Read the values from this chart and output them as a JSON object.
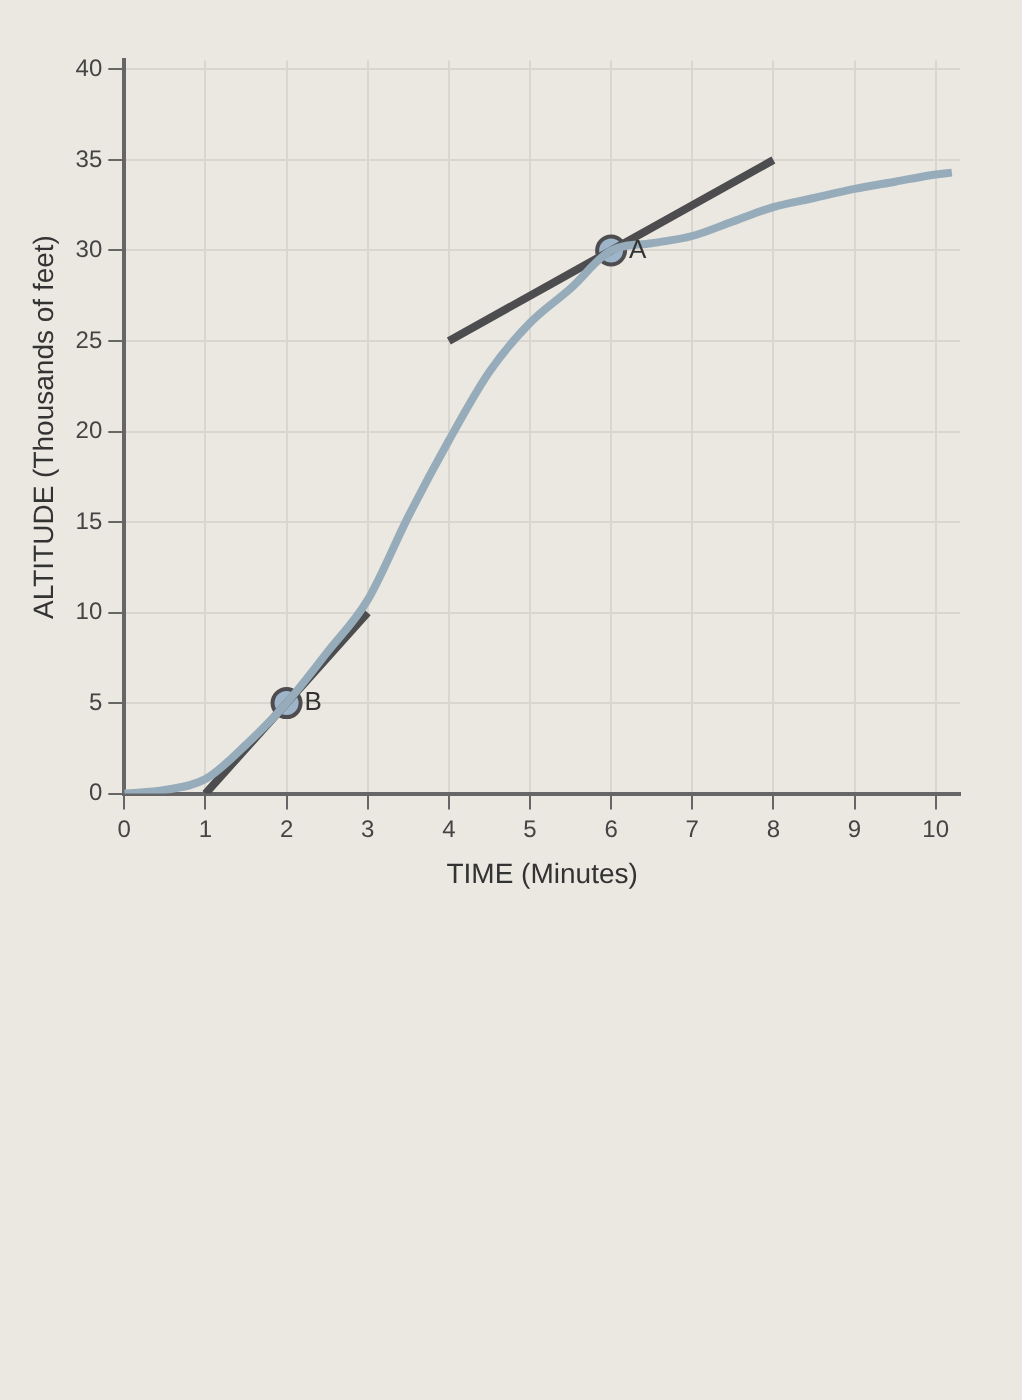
{
  "chart_data": {
    "type": "line",
    "xlabel": "TIME (Minutes)",
    "ylabel": "ALTITUDE (Thousands of feet)",
    "xlim": [
      0,
      10.3
    ],
    "ylim": [
      0,
      40.5
    ],
    "xticks": [
      0,
      1,
      2,
      3,
      4,
      5,
      6,
      7,
      8,
      9,
      10
    ],
    "yticks": [
      0,
      5,
      10,
      15,
      20,
      25,
      30,
      35,
      40
    ],
    "grid": true,
    "line_style": "solid",
    "series": [
      {
        "color": "#97acbb",
        "x": [
          0,
          0.5,
          1,
          1.5,
          2,
          2.5,
          3,
          3.5,
          4,
          4.5,
          5,
          5.5,
          6,
          6.5,
          7,
          7.5,
          8,
          8.5,
          9,
          9.5,
          10,
          10.2
        ],
        "values": [
          0,
          0.2,
          0.8,
          2.7,
          5,
          7.8,
          10.7,
          15.3,
          19.5,
          23.3,
          26,
          27.9,
          30,
          30.4,
          30.8,
          31.6,
          32.4,
          32.9,
          33.4,
          33.8,
          34.2,
          34.3
        ]
      },
      {
        "color": "#4d4d4f",
        "x": [
          1,
          3
        ],
        "values": [
          0,
          10
        ]
      },
      {
        "color": "#4d4d4f",
        "x": [
          4,
          8
        ],
        "values": [
          25,
          35
        ]
      },
      {
        "type": "scatter",
        "color": "#9db4c9",
        "x": [
          2,
          6
        ],
        "values": [
          5,
          30
        ]
      }
    ],
    "annotations": [
      {
        "text": "B",
        "x": 2,
        "y": 5
      },
      {
        "text": "A",
        "x": 6,
        "y": 30
      }
    ]
  }
}
